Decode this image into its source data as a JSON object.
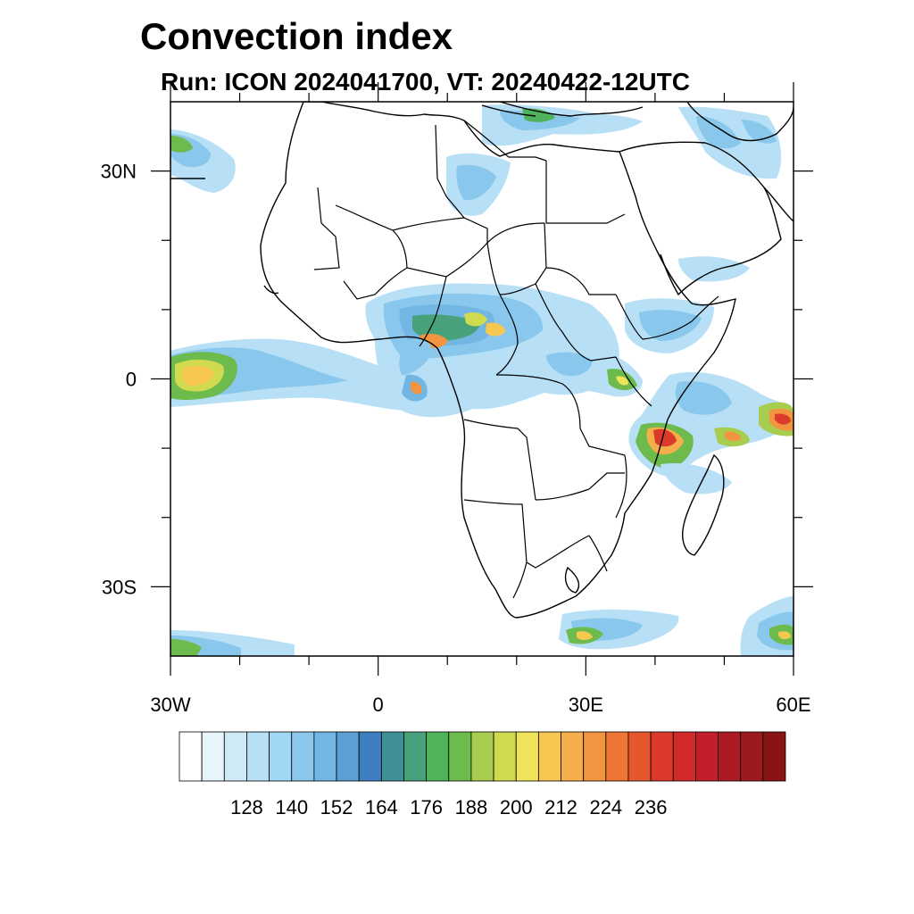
{
  "title": "Convection index",
  "subtitle": "Run: ICON 2024041700,  VT: 20240422-12UTC",
  "axes": {
    "lat_labels": [
      {
        "lat": 30,
        "label": "30N"
      },
      {
        "lat": 0,
        "label": "0"
      },
      {
        "lat": -30,
        "label": "30S"
      }
    ],
    "lon_labels": [
      {
        "lon": -30,
        "label": "30W"
      },
      {
        "lon": 0,
        "label": "0"
      },
      {
        "lon": 30,
        "label": "30E"
      },
      {
        "lon": 60,
        "label": "60E"
      }
    ],
    "lon_range": [
      -30,
      60
    ],
    "lat_range": [
      -40,
      40
    ]
  },
  "colorbar": {
    "labels": [
      "128",
      "140",
      "152",
      "164",
      "176",
      "188",
      "200",
      "212",
      "224",
      "236"
    ],
    "colors": [
      "#ffffff",
      "#e6f4fb",
      "#cfe9f7",
      "#b7e0f6",
      "#9fd7f4",
      "#89c8ec",
      "#72b6e3",
      "#5b9fd4",
      "#3e7fbf",
      "#3f8f96",
      "#47a27c",
      "#4fb35c",
      "#6dbb4c",
      "#a7cc4e",
      "#d0da4f",
      "#f0e35a",
      "#f7c84f",
      "#f6ae4a",
      "#f39440",
      "#ee7534",
      "#e6572d",
      "#dc3a2b",
      "#d22a2a",
      "#c21f2a",
      "#ad1a22",
      "#9b1a1e",
      "#8a1414"
    ]
  }
}
